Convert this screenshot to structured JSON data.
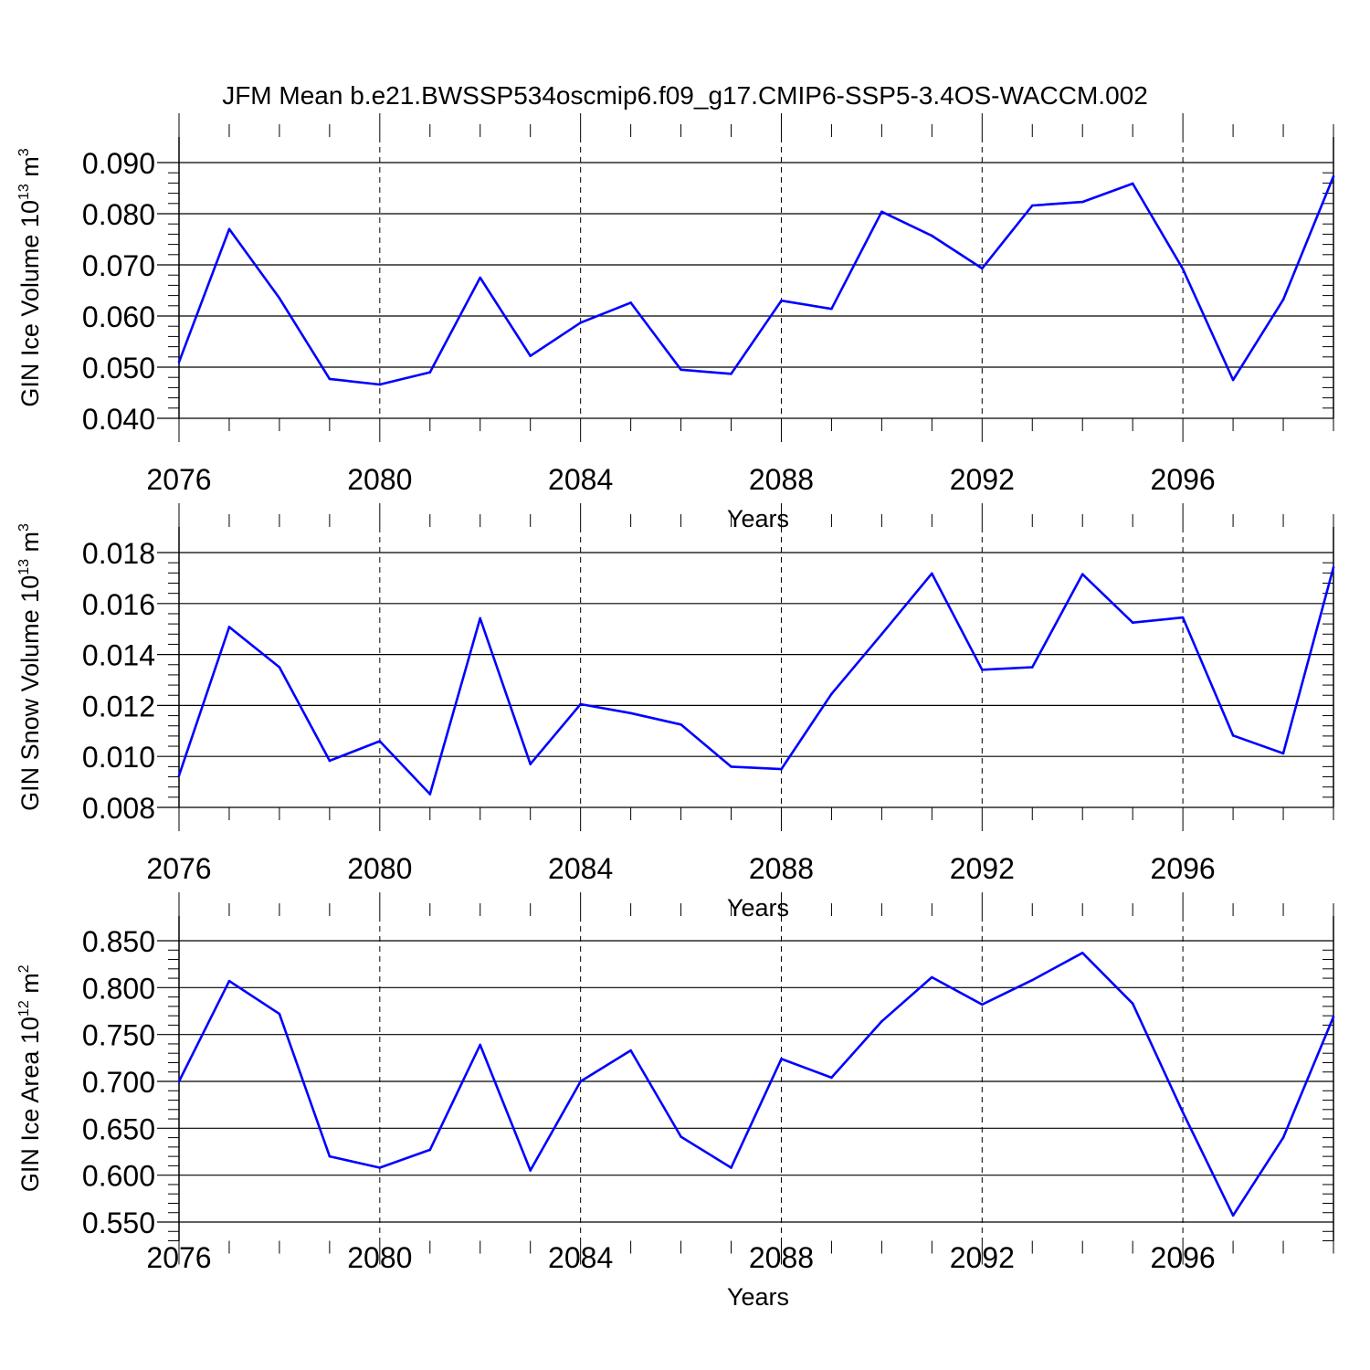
{
  "title": "JFM Mean b.e21.BWSSP534oscmip6.f09_g17.CMIP6-SSP5-3.4OS-WACCM.002",
  "line_color": "#0000ff",
  "chart_data": [
    {
      "type": "line",
      "ylabel": "GIN Ice Volume 10",
      "ylabel_exp": "13",
      "ylabel_unit": " m",
      "ylabel_unit_exp": "3",
      "xlabel": "Years",
      "xlim": [
        2076,
        2099
      ],
      "ylim": [
        0.04,
        0.09
      ],
      "xticks": [
        2076,
        2080,
        2084,
        2088,
        2092,
        2096
      ],
      "yticks": [
        "0.040",
        "0.050",
        "0.060",
        "0.070",
        "0.080",
        "0.090"
      ],
      "x": [
        2076,
        2077,
        2078,
        2079,
        2080,
        2081,
        2082,
        2083,
        2084,
        2085,
        2086,
        2087,
        2088,
        2089,
        2090,
        2091,
        2092,
        2093,
        2094,
        2095,
        2096,
        2097,
        2098,
        2099
      ],
      "values": [
        0.051,
        0.077,
        0.0635,
        0.0477,
        0.0466,
        0.049,
        0.0675,
        0.0522,
        0.0587,
        0.0626,
        0.0495,
        0.0487,
        0.063,
        0.0614,
        0.0804,
        0.0757,
        0.0693,
        0.0816,
        0.0823,
        0.0859,
        0.0692,
        0.0475,
        0.0632,
        0.0873
      ],
      "grid": "dashed vertical at major x ticks"
    },
    {
      "type": "line",
      "ylabel": "GIN Snow Volume 10",
      "ylabel_exp": "13",
      "ylabel_unit": " m",
      "ylabel_unit_exp": "3",
      "xlabel": "Years",
      "xlim": [
        2076,
        2099
      ],
      "ylim": [
        0.008,
        0.018
      ],
      "xticks": [
        2076,
        2080,
        2084,
        2088,
        2092,
        2096
      ],
      "yticks": [
        "0.008",
        "0.010",
        "0.012",
        "0.014",
        "0.016",
        "0.018"
      ],
      "x": [
        2076,
        2077,
        2078,
        2079,
        2080,
        2081,
        2082,
        2083,
        2084,
        2085,
        2086,
        2087,
        2088,
        2089,
        2090,
        2091,
        2092,
        2093,
        2094,
        2095,
        2096,
        2097,
        2098,
        2099
      ],
      "values": [
        0.00925,
        0.01508,
        0.0135,
        0.00983,
        0.0106,
        0.00852,
        0.01542,
        0.0097,
        0.01205,
        0.0117,
        0.01125,
        0.0096,
        0.0095,
        0.01245,
        0.0148,
        0.01718,
        0.0134,
        0.0135,
        0.01715,
        0.01525,
        0.01545,
        0.01082,
        0.01012,
        0.01742
      ],
      "grid": "dashed vertical at major x ticks"
    },
    {
      "type": "line",
      "ylabel": "GIN Ice Area 10",
      "ylabel_exp": "12",
      "ylabel_unit": " m",
      "ylabel_unit_exp": "2",
      "xlabel": "Years",
      "xlim": [
        2076,
        2099
      ],
      "ylim": [
        0.55,
        0.85
      ],
      "ylim_display": [
        0.53,
        0.85
      ],
      "xticks": [
        2076,
        2080,
        2084,
        2088,
        2092,
        2096
      ],
      "yticks": [
        "0.550",
        "0.600",
        "0.650",
        "0.700",
        "0.750",
        "0.800",
        "0.850"
      ],
      "x": [
        2076,
        2077,
        2078,
        2079,
        2080,
        2081,
        2082,
        2083,
        2084,
        2085,
        2086,
        2087,
        2088,
        2089,
        2090,
        2091,
        2092,
        2093,
        2094,
        2095,
        2096,
        2097,
        2098,
        2099
      ],
      "values": [
        0.7,
        0.807,
        0.772,
        0.62,
        0.608,
        0.627,
        0.739,
        0.605,
        0.7,
        0.733,
        0.641,
        0.608,
        0.724,
        0.704,
        0.764,
        0.811,
        0.782,
        0.808,
        0.837,
        0.783,
        0.667,
        0.557,
        0.64,
        0.769
      ],
      "grid": "dashed vertical at major x ticks"
    }
  ]
}
